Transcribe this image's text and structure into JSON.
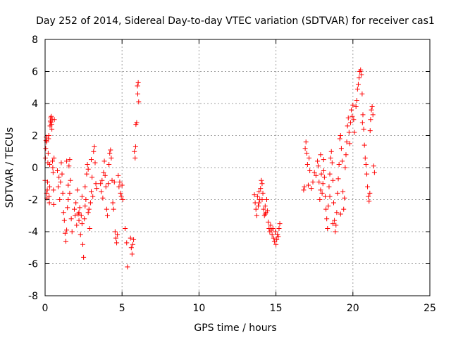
{
  "chart_data": {
    "type": "scatter",
    "title": "Day 252 of 2014, Sidereal Day-to-day VTEC variation (SDTVAR) for receiver cas1",
    "xlabel": "GPS time / hours",
    "ylabel": "SDTVAR / TECUs",
    "xlim": [
      0,
      25
    ],
    "ylim": [
      -8,
      8
    ],
    "xticks": [
      0,
      5,
      10,
      15,
      20,
      25
    ],
    "yticks": [
      -8,
      -6,
      -4,
      -2,
      0,
      2,
      4,
      6,
      8
    ],
    "grid": true,
    "marker": "+",
    "color": "#ff0000",
    "series": [
      {
        "name": "cas1",
        "points": [
          [
            0.0,
            -0.8
          ],
          [
            0.02,
            0.6
          ],
          [
            0.04,
            1.2
          ],
          [
            0.06,
            1.7
          ],
          [
            0.08,
            1.9
          ],
          [
            0.1,
            1.6
          ],
          [
            0.1,
            -1.6
          ],
          [
            0.12,
            -1.9
          ],
          [
            0.14,
            -1.4
          ],
          [
            0.16,
            -0.9
          ],
          [
            0.18,
            0.3
          ],
          [
            0.2,
            0.9
          ],
          [
            0.22,
            1.8
          ],
          [
            0.24,
            2.0
          ],
          [
            0.26,
            -1.8
          ],
          [
            0.28,
            -2.2
          ],
          [
            0.3,
            -1.2
          ],
          [
            0.3,
            0.2
          ],
          [
            0.32,
            2.6
          ],
          [
            0.34,
            2.9
          ],
          [
            0.36,
            3.1
          ],
          [
            0.38,
            2.8
          ],
          [
            0.4,
            3.2
          ],
          [
            0.42,
            2.7
          ],
          [
            0.44,
            2.4
          ],
          [
            0.46,
            3.0
          ],
          [
            0.48,
            0.4
          ],
          [
            0.5,
            0.0
          ],
          [
            0.52,
            -0.3
          ],
          [
            0.54,
            -1.4
          ],
          [
            0.56,
            -2.3
          ],
          [
            0.58,
            0.6
          ],
          [
            0.6,
            3.0
          ],
          [
            0.8,
            -0.2
          ],
          [
            0.85,
            -1.2
          ],
          [
            0.9,
            -0.6
          ],
          [
            0.95,
            -2.0
          ],
          [
            1.0,
            -0.9
          ],
          [
            1.05,
            0.3
          ],
          [
            1.1,
            -0.4
          ],
          [
            1.15,
            -1.6
          ],
          [
            1.2,
            -2.8
          ],
          [
            1.25,
            -3.3
          ],
          [
            1.3,
            -4.1
          ],
          [
            1.35,
            -4.6
          ],
          [
            1.4,
            -3.9
          ],
          [
            1.45,
            -2.5
          ],
          [
            1.5,
            -1.1
          ],
          [
            1.55,
            0.1
          ],
          [
            1.6,
            0.5
          ],
          [
            1.65,
            -0.8
          ],
          [
            1.7,
            -3.2
          ],
          [
            1.75,
            -4.0
          ],
          [
            1.4,
            0.4
          ],
          [
            1.5,
            -2.0
          ],
          [
            1.6,
            -1.6
          ],
          [
            1.9,
            -2.6
          ],
          [
            1.95,
            -3.0
          ],
          [
            2.0,
            -2.2
          ],
          [
            2.05,
            -3.6
          ],
          [
            2.1,
            -1.4
          ],
          [
            2.15,
            -2.9
          ],
          [
            2.2,
            -3.3
          ],
          [
            2.25,
            -2.5
          ],
          [
            2.3,
            -4.2
          ],
          [
            2.35,
            -3.0
          ],
          [
            2.4,
            -1.8
          ],
          [
            2.45,
            -4.8
          ],
          [
            2.5,
            -5.6
          ],
          [
            2.55,
            -3.2
          ],
          [
            2.6,
            -1.2
          ],
          [
            2.65,
            -2.0
          ],
          [
            2.7,
            -0.4
          ],
          [
            2.75,
            0.2
          ],
          [
            2.8,
            -0.1
          ],
          [
            2.85,
            -2.6
          ],
          [
            2.9,
            -3.8
          ],
          [
            2.95,
            -2.2
          ],
          [
            3.0,
            0.5
          ],
          [
            3.05,
            -0.6
          ],
          [
            3.1,
            -1.8
          ],
          [
            3.15,
            1.0
          ],
          [
            3.2,
            1.3
          ],
          [
            3.25,
            0.3
          ],
          [
            3.3,
            -1.0
          ],
          [
            3.35,
            -1.3
          ],
          [
            2.2,
            -2.8
          ],
          [
            2.4,
            -3.5
          ],
          [
            2.6,
            -2.4
          ],
          [
            2.8,
            -2.8
          ],
          [
            3.0,
            -1.5
          ],
          [
            3.6,
            -1.0
          ],
          [
            3.65,
            -1.5
          ],
          [
            3.7,
            -0.8
          ],
          [
            3.75,
            -1.9
          ],
          [
            3.8,
            -0.3
          ],
          [
            3.85,
            0.4
          ],
          [
            3.9,
            -0.5
          ],
          [
            3.95,
            -1.2
          ],
          [
            4.0,
            -2.6
          ],
          [
            4.05,
            -3.0
          ],
          [
            4.1,
            -1.0
          ],
          [
            4.15,
            0.2
          ],
          [
            4.2,
            0.9
          ],
          [
            4.25,
            1.1
          ],
          [
            4.3,
            0.6
          ],
          [
            4.35,
            -0.8
          ],
          [
            4.4,
            -2.2
          ],
          [
            4.45,
            -2.6
          ],
          [
            4.5,
            -0.9
          ],
          [
            4.55,
            -4.0
          ],
          [
            4.6,
            -4.4
          ],
          [
            4.65,
            -4.7
          ],
          [
            4.7,
            -4.2
          ],
          [
            4.75,
            -0.5
          ],
          [
            4.8,
            -1.2
          ],
          [
            4.85,
            -0.9
          ],
          [
            4.9,
            -1.6
          ],
          [
            4.95,
            -1.8
          ],
          [
            5.0,
            -1.1
          ],
          [
            5.05,
            -2.0
          ],
          [
            5.2,
            -3.8
          ],
          [
            5.3,
            -4.7
          ],
          [
            5.35,
            -6.2
          ],
          [
            5.55,
            -4.4
          ],
          [
            5.6,
            -5.0
          ],
          [
            5.65,
            -5.4
          ],
          [
            5.7,
            -4.8
          ],
          [
            5.75,
            -4.5
          ],
          [
            5.8,
            1.0
          ],
          [
            5.85,
            0.6
          ],
          [
            5.9,
            2.7
          ],
          [
            5.95,
            2.8
          ],
          [
            6.0,
            5.1
          ],
          [
            6.05,
            5.3
          ],
          [
            6.08,
            4.1
          ],
          [
            5.88,
            1.3
          ],
          [
            6.02,
            4.6
          ],
          [
            13.6,
            -1.7
          ],
          [
            13.65,
            -2.2
          ],
          [
            13.7,
            -2.6
          ],
          [
            13.75,
            -3.0
          ],
          [
            13.8,
            -1.8
          ],
          [
            13.85,
            -2.4
          ],
          [
            13.9,
            -1.5
          ],
          [
            13.95,
            -2.0
          ],
          [
            14.0,
            -1.3
          ],
          [
            14.05,
            -0.8
          ],
          [
            14.1,
            -1.0
          ],
          [
            14.15,
            -1.6
          ],
          [
            14.2,
            -2.6
          ],
          [
            14.25,
            -3.0
          ],
          [
            14.3,
            -2.4
          ],
          [
            14.35,
            -2.8
          ],
          [
            14.4,
            -2.0
          ],
          [
            14.45,
            -2.7
          ],
          [
            14.5,
            -3.4
          ],
          [
            14.55,
            -3.8
          ],
          [
            14.6,
            -4.0
          ],
          [
            14.65,
            -3.6
          ],
          [
            14.7,
            -3.9
          ],
          [
            14.75,
            -4.2
          ],
          [
            14.8,
            -3.8
          ],
          [
            14.85,
            -4.4
          ],
          [
            14.9,
            -4.6
          ],
          [
            14.95,
            -4.0
          ],
          [
            15.0,
            -4.8
          ],
          [
            15.05,
            -4.5
          ],
          [
            15.1,
            -4.2
          ],
          [
            15.15,
            -4.3
          ],
          [
            15.2,
            -3.8
          ],
          [
            15.25,
            -3.5
          ],
          [
            13.9,
            -2.2
          ],
          [
            14.1,
            -2.0
          ],
          [
            14.3,
            -2.9
          ],
          [
            16.8,
            -1.4
          ],
          [
            16.85,
            -1.2
          ],
          [
            16.9,
            1.2
          ],
          [
            16.95,
            1.6
          ],
          [
            17.0,
            0.9
          ],
          [
            17.05,
            0.2
          ],
          [
            17.1,
            -1.1
          ],
          [
            17.15,
            0.6
          ],
          [
            17.2,
            -0.2
          ],
          [
            17.3,
            -1.3
          ],
          [
            17.4,
            -0.9
          ],
          [
            17.5,
            -0.3
          ],
          [
            17.6,
            -0.5
          ],
          [
            17.7,
            0.4
          ],
          [
            17.75,
            0.1
          ],
          [
            17.8,
            -0.9
          ],
          [
            17.85,
            -2.0
          ],
          [
            17.9,
            0.8
          ],
          [
            17.95,
            -0.4
          ],
          [
            18.0,
            -1.6
          ],
          [
            18.05,
            -1.0
          ],
          [
            18.1,
            -0.2
          ],
          [
            18.15,
            -0.6
          ],
          [
            18.2,
            -1.8
          ],
          [
            18.25,
            -2.6
          ],
          [
            18.3,
            -3.2
          ],
          [
            18.35,
            -3.8
          ],
          [
            18.4,
            -2.4
          ],
          [
            18.45,
            -1.2
          ],
          [
            18.5,
            -0.4
          ],
          [
            18.55,
            0.6
          ],
          [
            18.6,
            1.0
          ],
          [
            18.65,
            0.3
          ],
          [
            18.7,
            -0.8
          ],
          [
            18.75,
            -2.2
          ],
          [
            18.8,
            -3.3
          ],
          [
            18.85,
            -4.0
          ],
          [
            18.9,
            -3.6
          ],
          [
            18.95,
            -2.8
          ],
          [
            19.0,
            -1.6
          ],
          [
            19.05,
            -0.7
          ],
          [
            19.1,
            0.2
          ],
          [
            19.15,
            1.8
          ],
          [
            19.2,
            2.0
          ],
          [
            19.25,
            1.2
          ],
          [
            19.3,
            0.4
          ],
          [
            19.35,
            -1.5
          ],
          [
            19.4,
            -2.6
          ],
          [
            19.45,
            -1.9
          ],
          [
            19.5,
            0.0
          ],
          [
            19.55,
            0.8
          ],
          [
            19.6,
            1.6
          ],
          [
            19.65,
            2.6
          ],
          [
            19.7,
            3.1
          ],
          [
            19.75,
            2.2
          ],
          [
            19.8,
            1.5
          ],
          [
            19.85,
            2.8
          ],
          [
            19.9,
            3.6
          ],
          [
            19.95,
            3.2
          ],
          [
            20.0,
            3.9
          ],
          [
            20.05,
            3.0
          ],
          [
            20.1,
            2.2
          ],
          [
            20.2,
            3.8
          ],
          [
            20.25,
            4.2
          ],
          [
            20.3,
            4.9
          ],
          [
            20.35,
            5.2
          ],
          [
            20.4,
            5.6
          ],
          [
            20.45,
            6.0
          ],
          [
            20.5,
            6.1
          ],
          [
            20.55,
            5.8
          ],
          [
            20.6,
            4.6
          ],
          [
            20.62,
            2.8
          ],
          [
            20.65,
            3.3
          ],
          [
            20.7,
            2.4
          ],
          [
            20.75,
            1.4
          ],
          [
            20.8,
            0.6
          ],
          [
            20.85,
            0.2
          ],
          [
            20.9,
            -0.4
          ],
          [
            20.95,
            -1.2
          ],
          [
            21.0,
            -1.8
          ],
          [
            21.05,
            -2.1
          ],
          [
            21.1,
            -1.6
          ],
          [
            21.12,
            2.3
          ],
          [
            21.15,
            3.0
          ],
          [
            21.2,
            3.6
          ],
          [
            21.25,
            3.8
          ],
          [
            21.3,
            3.3
          ],
          [
            21.35,
            0.1
          ],
          [
            21.4,
            -0.3
          ],
          [
            18.5,
            -1.8
          ],
          [
            18.7,
            -3.5
          ],
          [
            19.2,
            -2.9
          ],
          [
            18.1,
            0.5
          ],
          [
            17.9,
            -1.4
          ]
        ]
      }
    ]
  }
}
